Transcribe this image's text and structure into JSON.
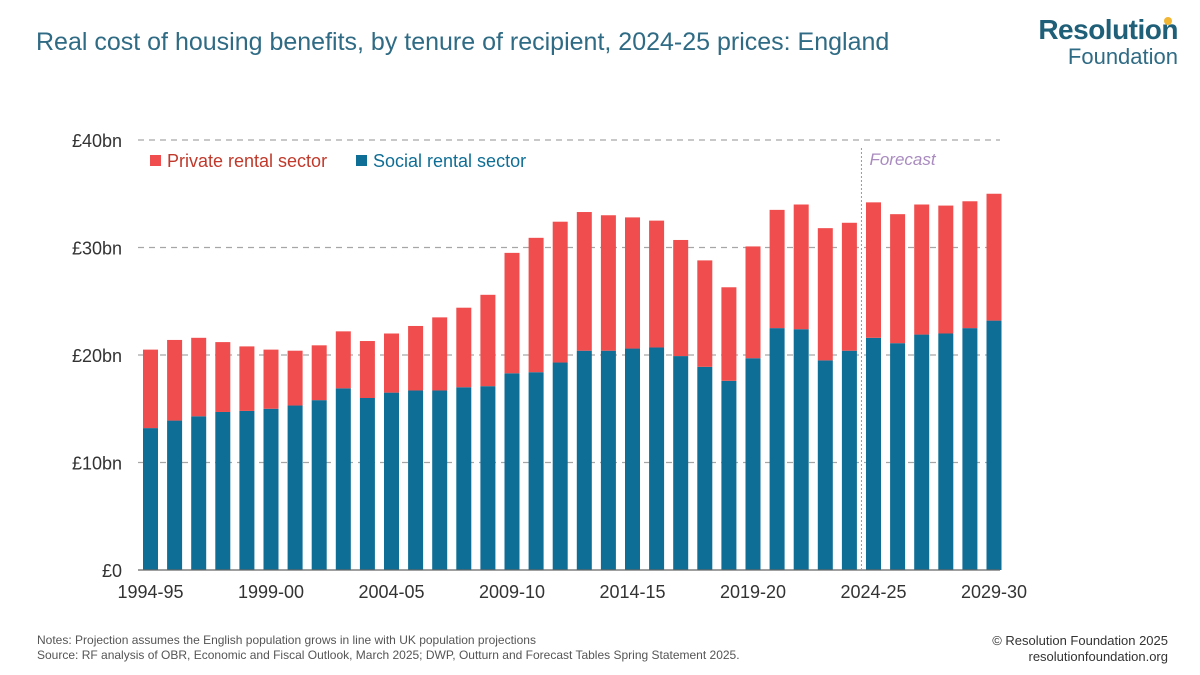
{
  "header": {
    "title": "Real cost of housing benefits, by tenure of recipient, 2024-25 prices: England",
    "logo_top": "Resolution",
    "logo_bottom": "Foundation"
  },
  "footer": {
    "notes": "Notes: Projection assumes the English population grows in line with UK population projections",
    "source": "Source: RF analysis of OBR, Economic and Fiscal Outlook, March 2025; DWP, Outturn and Forecast Tables Spring Statement 2025.",
    "copyright": "© Resolution Foundation 2025",
    "website": "resolutionfoundation.org"
  },
  "colors": {
    "private": "#f04e4e",
    "social": "#0f6e95",
    "grid": "#a6a6a6",
    "forecast": "#a98bbf",
    "axis_text": "#333333"
  },
  "chart_data": {
    "type": "bar",
    "stacked": true,
    "title": "Real cost of housing benefits, by tenure of recipient, 2024-25 prices: England",
    "ylim": [
      0,
      40
    ],
    "yticks": [
      0,
      10,
      20,
      30,
      40
    ],
    "ytick_labels": [
      "£0",
      "£10bn",
      "£20bn",
      "£30bn",
      "£40bn"
    ],
    "categories": [
      "1994-95",
      "1995-96",
      "1996-97",
      "1997-98",
      "1998-99",
      "1999-00",
      "2000-01",
      "2001-02",
      "2002-03",
      "2003-04",
      "2004-05",
      "2005-06",
      "2006-07",
      "2007-08",
      "2008-09",
      "2009-10",
      "2010-11",
      "2011-12",
      "2012-13",
      "2013-14",
      "2014-15",
      "2015-16",
      "2016-17",
      "2017-18",
      "2018-19",
      "2019-20",
      "2020-21",
      "2021-22",
      "2022-23",
      "2023-24",
      "2024-25",
      "2025-26",
      "2026-27",
      "2027-28",
      "2028-29",
      "2029-30"
    ],
    "xtick_labels": [
      "1994-95",
      "1999-00",
      "2004-05",
      "2009-10",
      "2014-15",
      "2019-20",
      "2024-25",
      "2029-30"
    ],
    "series": [
      {
        "name": "Social rental sector",
        "values": [
          13.2,
          13.9,
          14.3,
          14.7,
          14.8,
          15.0,
          15.3,
          15.8,
          16.9,
          16.0,
          16.5,
          16.7,
          16.7,
          17.0,
          17.1,
          18.3,
          18.4,
          19.3,
          20.4,
          20.4,
          20.6,
          20.7,
          19.9,
          18.9,
          17.6,
          19.7,
          22.5,
          22.4,
          19.5,
          20.4,
          21.6,
          21.1,
          21.9,
          22.0,
          22.5,
          23.2
        ]
      },
      {
        "name": "Private rental sector",
        "values": [
          7.3,
          7.5,
          7.3,
          6.5,
          6.0,
          5.5,
          5.1,
          5.1,
          5.3,
          5.3,
          5.5,
          6.0,
          6.8,
          7.4,
          8.5,
          11.2,
          12.5,
          13.1,
          12.9,
          12.6,
          12.2,
          11.8,
          10.8,
          9.9,
          8.7,
          10.4,
          11.0,
          11.6,
          12.3,
          11.9,
          12.6,
          12.0,
          12.1,
          11.9,
          11.8,
          11.8
        ]
      }
    ],
    "legend": [
      "Private rental sector",
      "Social rental sector"
    ],
    "legend_position": "top-left",
    "annotation": "Forecast",
    "forecast_start": "2024-25",
    "grid": true
  }
}
